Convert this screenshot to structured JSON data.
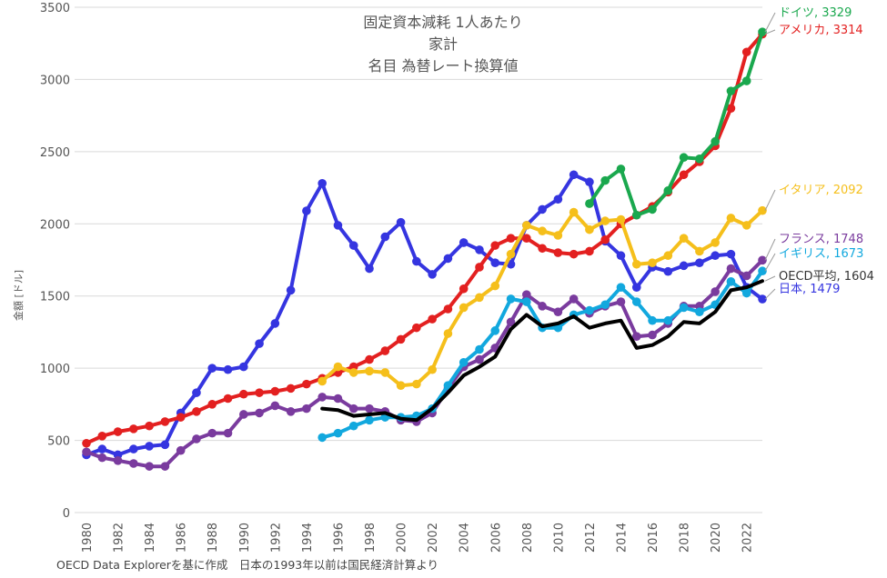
{
  "chart_data": {
    "type": "line",
    "title": [
      "固定資本減耗 1人あたり",
      "家計",
      "名目 為替レート換算値"
    ],
    "ylabel": "金額 [ドル]",
    "xlabel": "",
    "ylim": [
      0,
      3500
    ],
    "yticks": [
      0,
      500,
      1000,
      1500,
      2000,
      2500,
      3000,
      3500
    ],
    "xlim": [
      1980,
      2023
    ],
    "xticks": [
      1980,
      1982,
      1984,
      1986,
      1988,
      1990,
      1992,
      1994,
      1996,
      1998,
      2000,
      2002,
      2004,
      2006,
      2008,
      2010,
      2012,
      2014,
      2016,
      2018,
      2020,
      2022
    ],
    "grid": "horizontal",
    "footnote": "OECD Data Explorerを基に作成　日本の1993年以前は国民経済計算より",
    "series": [
      {
        "name": "日本",
        "label": "日本, 1479",
        "color": "#3535e0",
        "markers": true,
        "x": [
          1980,
          1981,
          1982,
          1983,
          1984,
          1985,
          1986,
          1987,
          1988,
          1989,
          1990,
          1991,
          1992,
          1993,
          1994,
          1995,
          1996,
          1997,
          1998,
          1999,
          2000,
          2001,
          2002,
          2003,
          2004,
          2005,
          2006,
          2007,
          2008,
          2009,
          2010,
          2011,
          2012,
          2013,
          2014,
          2015,
          2016,
          2017,
          2018,
          2019,
          2020,
          2021,
          2022,
          2023
        ],
        "values": [
          400,
          440,
          400,
          440,
          460,
          470,
          690,
          830,
          1000,
          990,
          1010,
          1170,
          1310,
          1540,
          2090,
          2280,
          1990,
          1850,
          1690,
          1910,
          2010,
          1740,
          1650,
          1760,
          1870,
          1820,
          1730,
          1720,
          1990,
          2100,
          2170,
          2340,
          2290,
          1880,
          1780,
          1560,
          1700,
          1670,
          1710,
          1730,
          1780,
          1790,
          1560,
          1479
        ]
      },
      {
        "name": "アメリカ",
        "label": "アメリカ, 3314",
        "color": "#e32020",
        "markers": true,
        "x": [
          1980,
          1981,
          1982,
          1983,
          1984,
          1985,
          1986,
          1987,
          1988,
          1989,
          1990,
          1991,
          1992,
          1993,
          1994,
          1995,
          1996,
          1997,
          1998,
          1999,
          2000,
          2001,
          2002,
          2003,
          2004,
          2005,
          2006,
          2007,
          2008,
          2009,
          2010,
          2011,
          2012,
          2013,
          2014,
          2015,
          2016,
          2017,
          2018,
          2019,
          2020,
          2021,
          2022,
          2023
        ],
        "values": [
          480,
          530,
          560,
          580,
          600,
          630,
          660,
          700,
          750,
          790,
          820,
          830,
          840,
          860,
          890,
          930,
          970,
          1010,
          1060,
          1120,
          1200,
          1280,
          1340,
          1410,
          1550,
          1700,
          1850,
          1900,
          1900,
          1830,
          1800,
          1790,
          1810,
          1890,
          2000,
          2060,
          2120,
          2220,
          2340,
          2430,
          2540,
          2800,
          3190,
          3314
        ]
      },
      {
        "name": "ドイツ",
        "label": "ドイツ, 3329",
        "color": "#1aa84e",
        "markers": true,
        "x": [
          2012,
          2013,
          2014,
          2015,
          2016,
          2017,
          2018,
          2019,
          2020,
          2021,
          2022,
          2023
        ],
        "values": [
          2140,
          2300,
          2380,
          2060,
          2100,
          2230,
          2460,
          2450,
          2570,
          2920,
          2990,
          3329
        ]
      },
      {
        "name": "イタリア",
        "label": "イタリア, 2092",
        "color": "#f5bf1b",
        "markers": true,
        "x": [
          1995,
          1996,
          1997,
          1998,
          1999,
          2000,
          2001,
          2002,
          2003,
          2004,
          2005,
          2006,
          2007,
          2008,
          2009,
          2010,
          2011,
          2012,
          2013,
          2014,
          2015,
          2016,
          2017,
          2018,
          2019,
          2020,
          2021,
          2022,
          2023
        ],
        "values": [
          910,
          1010,
          970,
          980,
          970,
          880,
          890,
          990,
          1240,
          1420,
          1490,
          1570,
          1790,
          1990,
          1950,
          1920,
          2080,
          1960,
          2020,
          2030,
          1720,
          1730,
          1780,
          1900,
          1810,
          1870,
          2040,
          1990,
          2092
        ]
      },
      {
        "name": "フランス",
        "label": "フランス, 1748",
        "color": "#7a3b9e",
        "markers": true,
        "x": [
          1980,
          1981,
          1982,
          1983,
          1984,
          1985,
          1986,
          1987,
          1988,
          1989,
          1990,
          1991,
          1992,
          1993,
          1994,
          1995,
          1996,
          1997,
          1998,
          1999,
          2000,
          2001,
          2002,
          2003,
          2004,
          2005,
          2006,
          2007,
          2008,
          2009,
          2010,
          2011,
          2012,
          2013,
          2014,
          2015,
          2016,
          2017,
          2018,
          2019,
          2020,
          2021,
          2022,
          2023
        ],
        "values": [
          420,
          380,
          360,
          340,
          320,
          320,
          430,
          510,
          550,
          550,
          680,
          690,
          740,
          700,
          720,
          800,
          790,
          720,
          720,
          700,
          640,
          630,
          690,
          860,
          1010,
          1060,
          1140,
          1320,
          1510,
          1430,
          1390,
          1480,
          1380,
          1430,
          1460,
          1220,
          1230,
          1310,
          1430,
          1430,
          1530,
          1690,
          1640,
          1748
        ]
      },
      {
        "name": "イギリス",
        "label": "イギリス, 1673",
        "color": "#12a8de",
        "markers": true,
        "x": [
          1995,
          1996,
          1997,
          1998,
          1999,
          2000,
          2001,
          2002,
          2003,
          2004,
          2005,
          2006,
          2007,
          2008,
          2009,
          2010,
          2011,
          2012,
          2013,
          2014,
          2015,
          2016,
          2017,
          2018,
          2019,
          2020,
          2021,
          2022,
          2023
        ],
        "values": [
          520,
          550,
          600,
          640,
          660,
          660,
          670,
          720,
          880,
          1040,
          1130,
          1260,
          1480,
          1460,
          1280,
          1280,
          1370,
          1400,
          1440,
          1560,
          1460,
          1330,
          1330,
          1420,
          1390,
          1440,
          1600,
          1520,
          1673
        ]
      },
      {
        "name": "OECD平均",
        "label": "OECD平均, 1604",
        "color": "#000000",
        "markers": false,
        "x": [
          1995,
          1996,
          1997,
          1998,
          1999,
          2000,
          2001,
          2002,
          2003,
          2004,
          2005,
          2006,
          2007,
          2008,
          2009,
          2010,
          2011,
          2012,
          2013,
          2014,
          2015,
          2016,
          2017,
          2018,
          2019,
          2020,
          2021,
          2022,
          2023
        ],
        "values": [
          720,
          710,
          670,
          680,
          690,
          650,
          640,
          720,
          830,
          950,
          1010,
          1080,
          1270,
          1370,
          1290,
          1310,
          1360,
          1280,
          1310,
          1330,
          1140,
          1160,
          1220,
          1320,
          1310,
          1390,
          1540,
          1560,
          1604
        ]
      }
    ]
  }
}
